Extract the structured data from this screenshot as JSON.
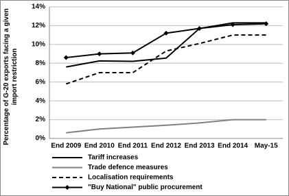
{
  "chart_data": {
    "type": "line",
    "ylabel": "Percentage of G-20 exports facing a given import restriction",
    "categories": [
      "End 2009",
      "End 2010",
      "End 2011",
      "End 2012",
      "End 2013",
      "End 2014",
      "May-15"
    ],
    "series": [
      {
        "name": "Tariff increases",
        "color": "#000000",
        "dash": false,
        "marker": "none",
        "values": [
          7.6,
          8.25,
          8.2,
          8.55,
          11.7,
          12.3,
          12.3
        ]
      },
      {
        "name": "Trade defence measures",
        "color": "#808080",
        "dash": false,
        "marker": "none",
        "values": [
          0.6,
          1.0,
          1.2,
          1.4,
          1.65,
          2.0,
          2.0
        ]
      },
      {
        "name": "Localisation requirements",
        "color": "#000000",
        "dash": true,
        "marker": "none",
        "values": [
          5.8,
          7.0,
          7.0,
          9.3,
          10.1,
          11.0,
          11.0
        ]
      },
      {
        "name": "\"Buy National\" public procurement",
        "color": "#000000",
        "dash": false,
        "marker": "diamond",
        "values": [
          8.6,
          9.0,
          9.1,
          11.2,
          11.7,
          12.1,
          12.2
        ]
      }
    ],
    "ylim": [
      0,
      14
    ],
    "yticks": [
      {
        "value": 0,
        "label": "0%"
      },
      {
        "value": 2,
        "label": "2%"
      },
      {
        "value": 4,
        "label": "4%"
      },
      {
        "value": 6,
        "label": "6%"
      },
      {
        "value": 8,
        "label": "8%"
      },
      {
        "value": 10,
        "label": "10%"
      },
      {
        "value": 12,
        "label": "12%"
      },
      {
        "value": 14,
        "label": "14%"
      }
    ],
    "grid": true,
    "legend": "bottom"
  }
}
